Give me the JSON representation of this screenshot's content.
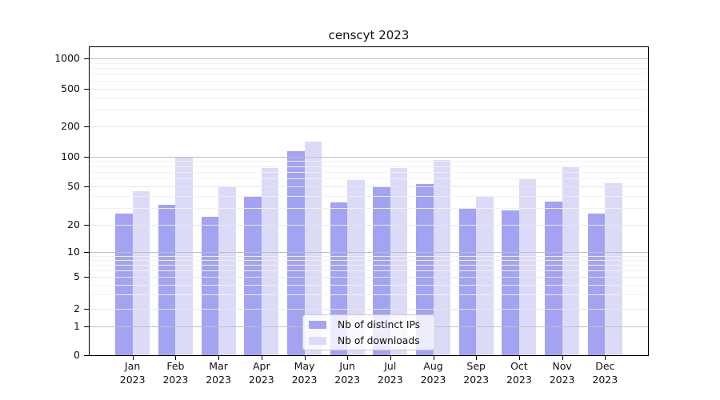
{
  "chart_data": {
    "type": "bar",
    "title": "censcyt 2023",
    "categories": [
      "Jan 2023",
      "Feb 2023",
      "Mar 2023",
      "Apr 2023",
      "May 2023",
      "Jun 2023",
      "Jul 2023",
      "Aug 2023",
      "Sep 2023",
      "Oct 2023",
      "Nov 2023",
      "Dec 2023"
    ],
    "series": [
      {
        "name": "Nb of distinct IPs",
        "color": "#a3a3f2",
        "values": [
          26,
          32,
          24,
          39,
          112,
          34,
          49,
          53,
          30,
          28,
          35,
          26
        ]
      },
      {
        "name": "Nb of downloads",
        "color": "#dbdbf8",
        "values": [
          45,
          100,
          50,
          77,
          140,
          58,
          77,
          92,
          40,
          60,
          78,
          54
        ]
      }
    ],
    "yticks": [
      0,
      1,
      2,
      5,
      10,
      20,
      50,
      100,
      200,
      500,
      1000
    ],
    "ylim": [
      0,
      1300
    ],
    "yscale": "log above 1, linear segment from 0 to 1",
    "xlabel": "",
    "ylabel": "",
    "grid": "horizontal major and minor gridlines, drawn over bars",
    "legend_position": "lower center inside plot",
    "style": {
      "major_grid_color": "#bfbfbf",
      "light_grid_color": "#e6e6e6",
      "minor_grid_color": "#f1f1f1",
      "axis_color": "#000000",
      "background": "#ffffff"
    }
  }
}
